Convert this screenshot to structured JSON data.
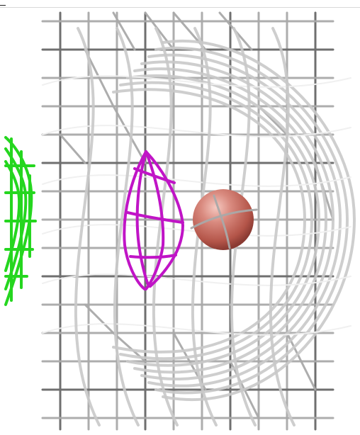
{
  "scene": {
    "background": "#ffffff",
    "colors": {
      "mesh_grid": "#a9a9a9",
      "mesh_cage": "#c9c9c9",
      "magenta_cage": "#c014c6",
      "green_cage": "#25d61f",
      "sphere": "#c46a5f"
    },
    "objects": [
      "wire-grid-mesh",
      "curved-cage-mesh",
      "magenta-wire-cage",
      "green-wire-cage",
      "atom-sphere"
    ]
  }
}
